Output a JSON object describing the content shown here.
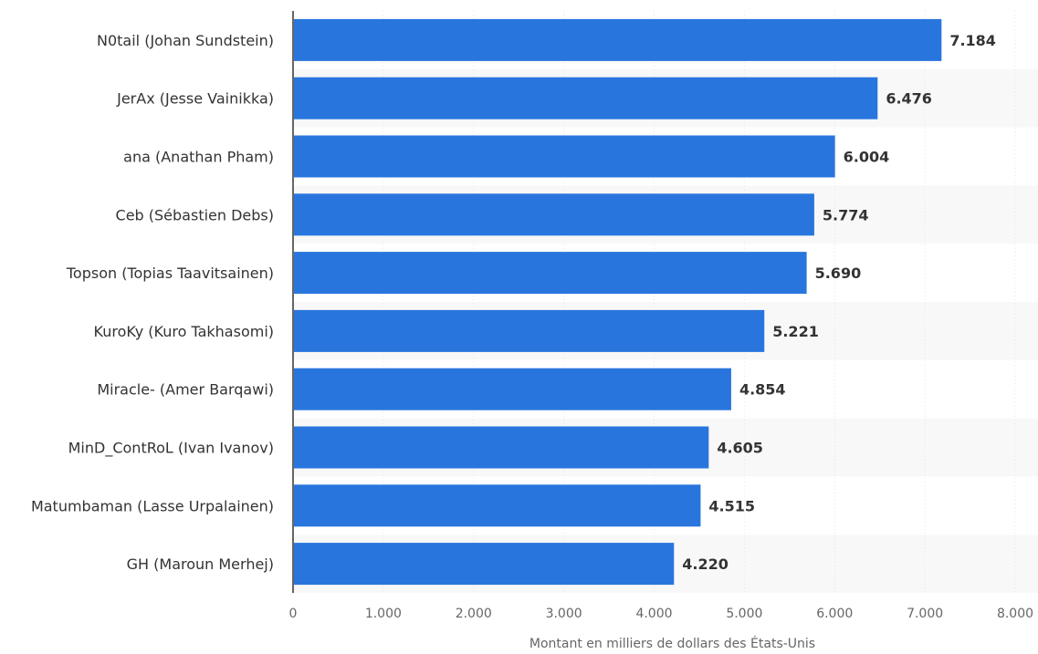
{
  "chart_data": {
    "type": "bar",
    "orientation": "horizontal",
    "categories": [
      "N0tail (Johan Sundstein)",
      "JerAx (Jesse Vainikka)",
      "ana (Anathan Pham)",
      "Ceb (Sébastien Debs)",
      "Topson (Topias Taavitsainen)",
      "KuroKy (Kuro Takhasomi)",
      "Miracle- (Amer Barqawi)",
      "MinD_ContRoL (Ivan Ivanov)",
      "Matumbaman (Lasse Urpalainen)",
      "GH (Maroun Merhej)"
    ],
    "values": [
      7184,
      6476,
      6004,
      5774,
      5690,
      5221,
      4854,
      4605,
      4515,
      4220
    ],
    "value_labels": [
      "7.184",
      "6.476",
      "6.004",
      "5.774",
      "5.690",
      "5.221",
      "4.854",
      "4.605",
      "4.515",
      "4.220"
    ],
    "xlim": [
      0,
      8000
    ],
    "x_ticks": [
      0,
      1000,
      2000,
      3000,
      4000,
      5000,
      6000,
      7000,
      8000
    ],
    "x_tick_labels": [
      "0",
      "1.000",
      "2.000",
      "3.000",
      "4.000",
      "5.000",
      "6.000",
      "7.000",
      "8.000"
    ],
    "xlabel": "Montant en milliers de dollars des États-Unis",
    "ylabel": "",
    "title": "",
    "grid": true,
    "bar_color": "#2876dd",
    "band_color": "#f8f8f8"
  }
}
